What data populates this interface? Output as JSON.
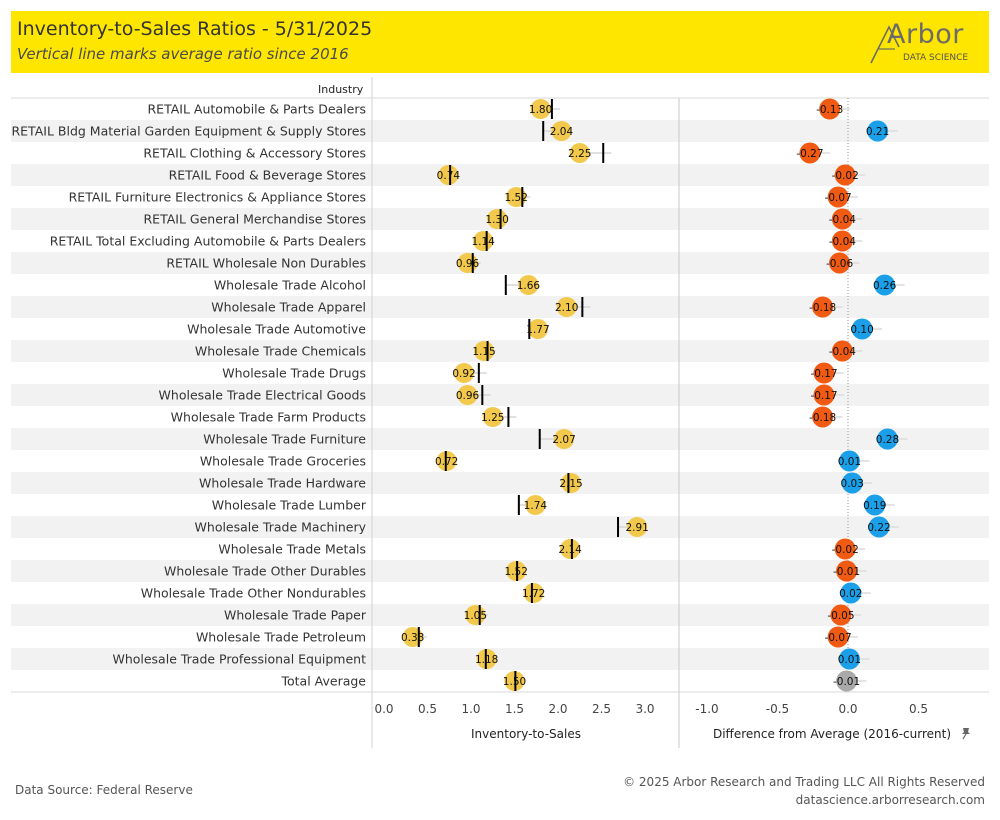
{
  "header": {
    "title": "Inventory-to-Sales Ratios - 5/31/2025",
    "subtitle": "Vertical line marks average ratio since 2016"
  },
  "logo": {
    "word": "Arbor",
    "sub": "DATA SCIENCE"
  },
  "footer": {
    "source": "Data Source: Federal Reserve",
    "copyright": "© 2025 Arbor Research and Trading LLC  All Rights Reserved",
    "url": "datascience.arborresearch.com"
  },
  "colors": {
    "banner": "#ffe600",
    "ratio_dot": "#f2c94c",
    "positive": "#1a9fe8",
    "negative": "#f05a12",
    "total": "#a9a9a9",
    "average_marker": "#000000",
    "band": "#f2f2f2"
  },
  "icons": {
    "pin": "pin-icon"
  },
  "chart_data": {
    "type": "dot",
    "column_header": "Industry",
    "panels": [
      {
        "name": "ratio",
        "xlabel": "Inventory-to-Sales",
        "xlim": [
          0,
          3.2
        ],
        "ticks": [
          "0.0",
          "0.5",
          "1.0",
          "1.5",
          "2.0",
          "2.5",
          "3.0"
        ]
      },
      {
        "name": "difference",
        "xlabel": "Difference from Average (2016-current)",
        "xlim": [
          -1.2,
          1.0
        ],
        "ticks": [
          "-1.0",
          "-0.5",
          "0.0",
          "0.5"
        ]
      }
    ],
    "rows": [
      {
        "industry": "RETAIL Automobile & Parts Dealers",
        "ratio": 1.8,
        "ratio_label": "1.80",
        "average": 1.93,
        "diff": -0.13,
        "diff_label": "-0.13"
      },
      {
        "industry": "RETAIL Bldg Material Garden Equipment & Supply Stores",
        "ratio": 2.04,
        "ratio_label": "2.04",
        "average": 1.83,
        "diff": 0.21,
        "diff_label": "0.21"
      },
      {
        "industry": "RETAIL Clothing & Accessory Stores",
        "ratio": 2.25,
        "ratio_label": "2.25",
        "average": 2.52,
        "diff": -0.27,
        "diff_label": "-0.27"
      },
      {
        "industry": "RETAIL Food & Beverage Stores",
        "ratio": 0.74,
        "ratio_label": "0.74",
        "average": 0.76,
        "diff": -0.02,
        "diff_label": "-0.02"
      },
      {
        "industry": "RETAIL Furniture Electronics & Appliance Stores",
        "ratio": 1.52,
        "ratio_label": "1.52",
        "average": 1.59,
        "diff": -0.07,
        "diff_label": "-0.07"
      },
      {
        "industry": "RETAIL General Merchandise Stores",
        "ratio": 1.3,
        "ratio_label": "1.30",
        "average": 1.34,
        "diff": -0.04,
        "diff_label": "-0.04"
      },
      {
        "industry": "RETAIL Total Excluding Automobile & Parts Dealers",
        "ratio": 1.14,
        "ratio_label": "1.14",
        "average": 1.18,
        "diff": -0.04,
        "diff_label": "-0.04"
      },
      {
        "industry": "RETAIL Wholesale Non Durables",
        "ratio": 0.96,
        "ratio_label": "0.96",
        "average": 1.02,
        "diff": -0.06,
        "diff_label": "-0.06"
      },
      {
        "industry": "Wholesale Trade Alcohol",
        "ratio": 1.66,
        "ratio_label": "1.66",
        "average": 1.4,
        "diff": 0.26,
        "diff_label": "0.26"
      },
      {
        "industry": "Wholesale Trade Apparel",
        "ratio": 2.1,
        "ratio_label": "2.10",
        "average": 2.28,
        "diff": -0.18,
        "diff_label": "-0.18"
      },
      {
        "industry": "Wholesale Trade Automotive",
        "ratio": 1.77,
        "ratio_label": "1.77",
        "average": 1.67,
        "diff": 0.1,
        "diff_label": "0.10"
      },
      {
        "industry": "Wholesale Trade Chemicals",
        "ratio": 1.15,
        "ratio_label": "1.15",
        "average": 1.19,
        "diff": -0.04,
        "diff_label": "-0.04"
      },
      {
        "industry": "Wholesale Trade Drugs",
        "ratio": 0.92,
        "ratio_label": "0.92",
        "average": 1.09,
        "diff": -0.17,
        "diff_label": "-0.17"
      },
      {
        "industry": "Wholesale Trade Electrical Goods",
        "ratio": 0.96,
        "ratio_label": "0.96",
        "average": 1.13,
        "diff": -0.17,
        "diff_label": "-0.17"
      },
      {
        "industry": "Wholesale Trade Farm Products",
        "ratio": 1.25,
        "ratio_label": "1.25",
        "average": 1.43,
        "diff": -0.18,
        "diff_label": "-0.18"
      },
      {
        "industry": "Wholesale Trade Furniture",
        "ratio": 2.07,
        "ratio_label": "2.07",
        "average": 1.79,
        "diff": 0.28,
        "diff_label": "0.28"
      },
      {
        "industry": "Wholesale Trade Groceries",
        "ratio": 0.72,
        "ratio_label": "0.72",
        "average": 0.71,
        "diff": 0.01,
        "diff_label": "0.01"
      },
      {
        "industry": "Wholesale Trade Hardware",
        "ratio": 2.15,
        "ratio_label": "2.15",
        "average": 2.12,
        "diff": 0.03,
        "diff_label": "0.03"
      },
      {
        "industry": "Wholesale Trade Lumber",
        "ratio": 1.74,
        "ratio_label": "1.74",
        "average": 1.55,
        "diff": 0.19,
        "diff_label": "0.19"
      },
      {
        "industry": "Wholesale Trade Machinery",
        "ratio": 2.91,
        "ratio_label": "2.91",
        "average": 2.69,
        "diff": 0.22,
        "diff_label": "0.22"
      },
      {
        "industry": "Wholesale Trade Metals",
        "ratio": 2.14,
        "ratio_label": "2.14",
        "average": 2.16,
        "diff": -0.02,
        "diff_label": "-0.02"
      },
      {
        "industry": "Wholesale Trade Other Durables",
        "ratio": 1.52,
        "ratio_label": "1.52",
        "average": 1.53,
        "diff": -0.01,
        "diff_label": "-0.01"
      },
      {
        "industry": "Wholesale Trade Other Nondurables",
        "ratio": 1.72,
        "ratio_label": "1.72",
        "average": 1.7,
        "diff": 0.02,
        "diff_label": "0.02"
      },
      {
        "industry": "Wholesale Trade Paper",
        "ratio": 1.05,
        "ratio_label": "1.05",
        "average": 1.1,
        "diff": -0.05,
        "diff_label": "-0.05"
      },
      {
        "industry": "Wholesale Trade Petroleum",
        "ratio": 0.33,
        "ratio_label": "0.33",
        "average": 0.4,
        "diff": -0.07,
        "diff_label": "-0.07"
      },
      {
        "industry": "Wholesale Trade Professional Equipment",
        "ratio": 1.18,
        "ratio_label": "1.18",
        "average": 1.17,
        "diff": 0.01,
        "diff_label": "0.01"
      },
      {
        "industry": "Total Average",
        "ratio": 1.5,
        "ratio_label": "1.50",
        "average": 1.51,
        "diff": -0.01,
        "diff_label": "-0.01",
        "is_total": true
      }
    ]
  }
}
